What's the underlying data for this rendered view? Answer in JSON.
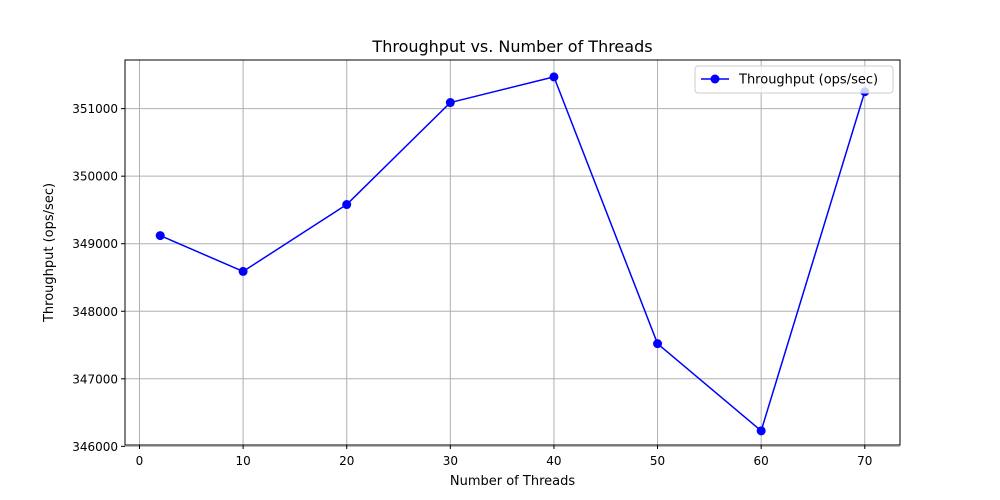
{
  "chart_data": {
    "type": "line",
    "title": "Throughput vs. Number of Threads",
    "xlabel": "Number of Threads",
    "ylabel": "Throughput (ops/sec)",
    "x": [
      2,
      10,
      20,
      30,
      40,
      50,
      60,
      70
    ],
    "series": [
      {
        "name": "Throughput (ops/sec)",
        "color": "#0000ff",
        "marker": "circle",
        "values": [
          349120,
          348590,
          349580,
          351090,
          351470,
          347520,
          346230,
          351250
        ]
      }
    ],
    "xlim": [
      -1.4,
      73.4
    ],
    "ylim": [
      346020,
      351720
    ],
    "xticks": [
      0,
      10,
      20,
      30,
      40,
      50,
      60,
      70
    ],
    "yticks": [
      346000,
      347000,
      348000,
      349000,
      350000,
      351000
    ],
    "xtick_labels": [
      "0",
      "10",
      "20",
      "30",
      "40",
      "50",
      "60",
      "70"
    ],
    "ytick_labels": [
      "346000",
      "347000",
      "348000",
      "349000",
      "350000",
      "351000"
    ],
    "grid": true,
    "legend": "top-right"
  }
}
